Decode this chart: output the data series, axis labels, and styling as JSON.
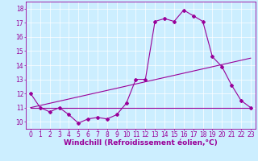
{
  "xlabel": "Windchill (Refroidissement éolien,°C)",
  "background_color": "#cceeff",
  "line_color": "#990099",
  "xlim": [
    -0.5,
    23.5
  ],
  "ylim": [
    9.5,
    18.5
  ],
  "xticks": [
    0,
    1,
    2,
    3,
    4,
    5,
    6,
    7,
    8,
    9,
    10,
    11,
    12,
    13,
    14,
    15,
    16,
    17,
    18,
    19,
    20,
    21,
    22,
    23
  ],
  "yticks": [
    10,
    11,
    12,
    13,
    14,
    15,
    16,
    17,
    18
  ],
  "line1_x": [
    0,
    1,
    2,
    3,
    4,
    5,
    6,
    7,
    8,
    9,
    10,
    11,
    12,
    13,
    14,
    15,
    16,
    17,
    18,
    19,
    20,
    21,
    22,
    23
  ],
  "line1_y": [
    12.0,
    11.0,
    10.7,
    11.0,
    10.5,
    9.9,
    10.2,
    10.3,
    10.2,
    10.5,
    11.3,
    13.0,
    13.0,
    17.1,
    17.3,
    17.1,
    17.9,
    17.5,
    17.1,
    14.6,
    13.9,
    12.6,
    11.5,
    11.0
  ],
  "line2_x": [
    0,
    23
  ],
  "line2_y": [
    11.0,
    14.5
  ],
  "line3_x": [
    0,
    23
  ],
  "line3_y": [
    11.0,
    11.0
  ],
  "marker": "D",
  "markersize": 2.0,
  "linewidth": 0.8,
  "xlabel_fontsize": 6.5,
  "tick_fontsize": 5.5,
  "grid_color": "#ffffff"
}
